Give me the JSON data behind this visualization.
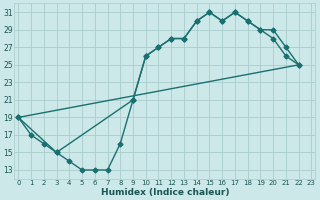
{
  "xlabel": "Humidex (Indice chaleur)",
  "bg_color": "#cce8e8",
  "grid_color": "#aacccc",
  "line_color": "#1a7070",
  "line1_x": [
    0,
    1,
    2,
    3,
    4,
    5,
    6,
    7,
    8,
    9,
    10,
    11,
    12,
    13,
    14,
    15,
    16,
    17,
    18,
    19,
    20,
    21,
    22
  ],
  "line1_y": [
    19,
    17,
    16,
    15,
    14,
    13,
    13,
    13,
    16,
    21,
    26,
    27,
    28,
    28,
    30,
    31,
    30,
    31,
    30,
    29,
    28,
    26,
    25
  ],
  "line2_x": [
    0,
    3,
    9,
    10,
    11,
    12,
    13,
    14,
    15,
    16,
    17,
    18,
    19,
    20,
    21,
    22
  ],
  "line2_y": [
    19,
    15,
    21,
    26,
    27,
    28,
    28,
    30,
    31,
    30,
    31,
    30,
    29,
    29,
    27,
    25
  ],
  "line3_x": [
    0,
    22
  ],
  "line3_y": [
    19,
    25
  ],
  "xlim": [
    -0.3,
    23.3
  ],
  "ylim": [
    12,
    32
  ],
  "xticks": [
    0,
    1,
    2,
    3,
    4,
    5,
    6,
    7,
    8,
    9,
    10,
    11,
    12,
    13,
    14,
    15,
    16,
    17,
    18,
    19,
    20,
    21,
    22,
    23
  ],
  "yticks": [
    13,
    15,
    17,
    19,
    21,
    23,
    25,
    27,
    29,
    31
  ]
}
